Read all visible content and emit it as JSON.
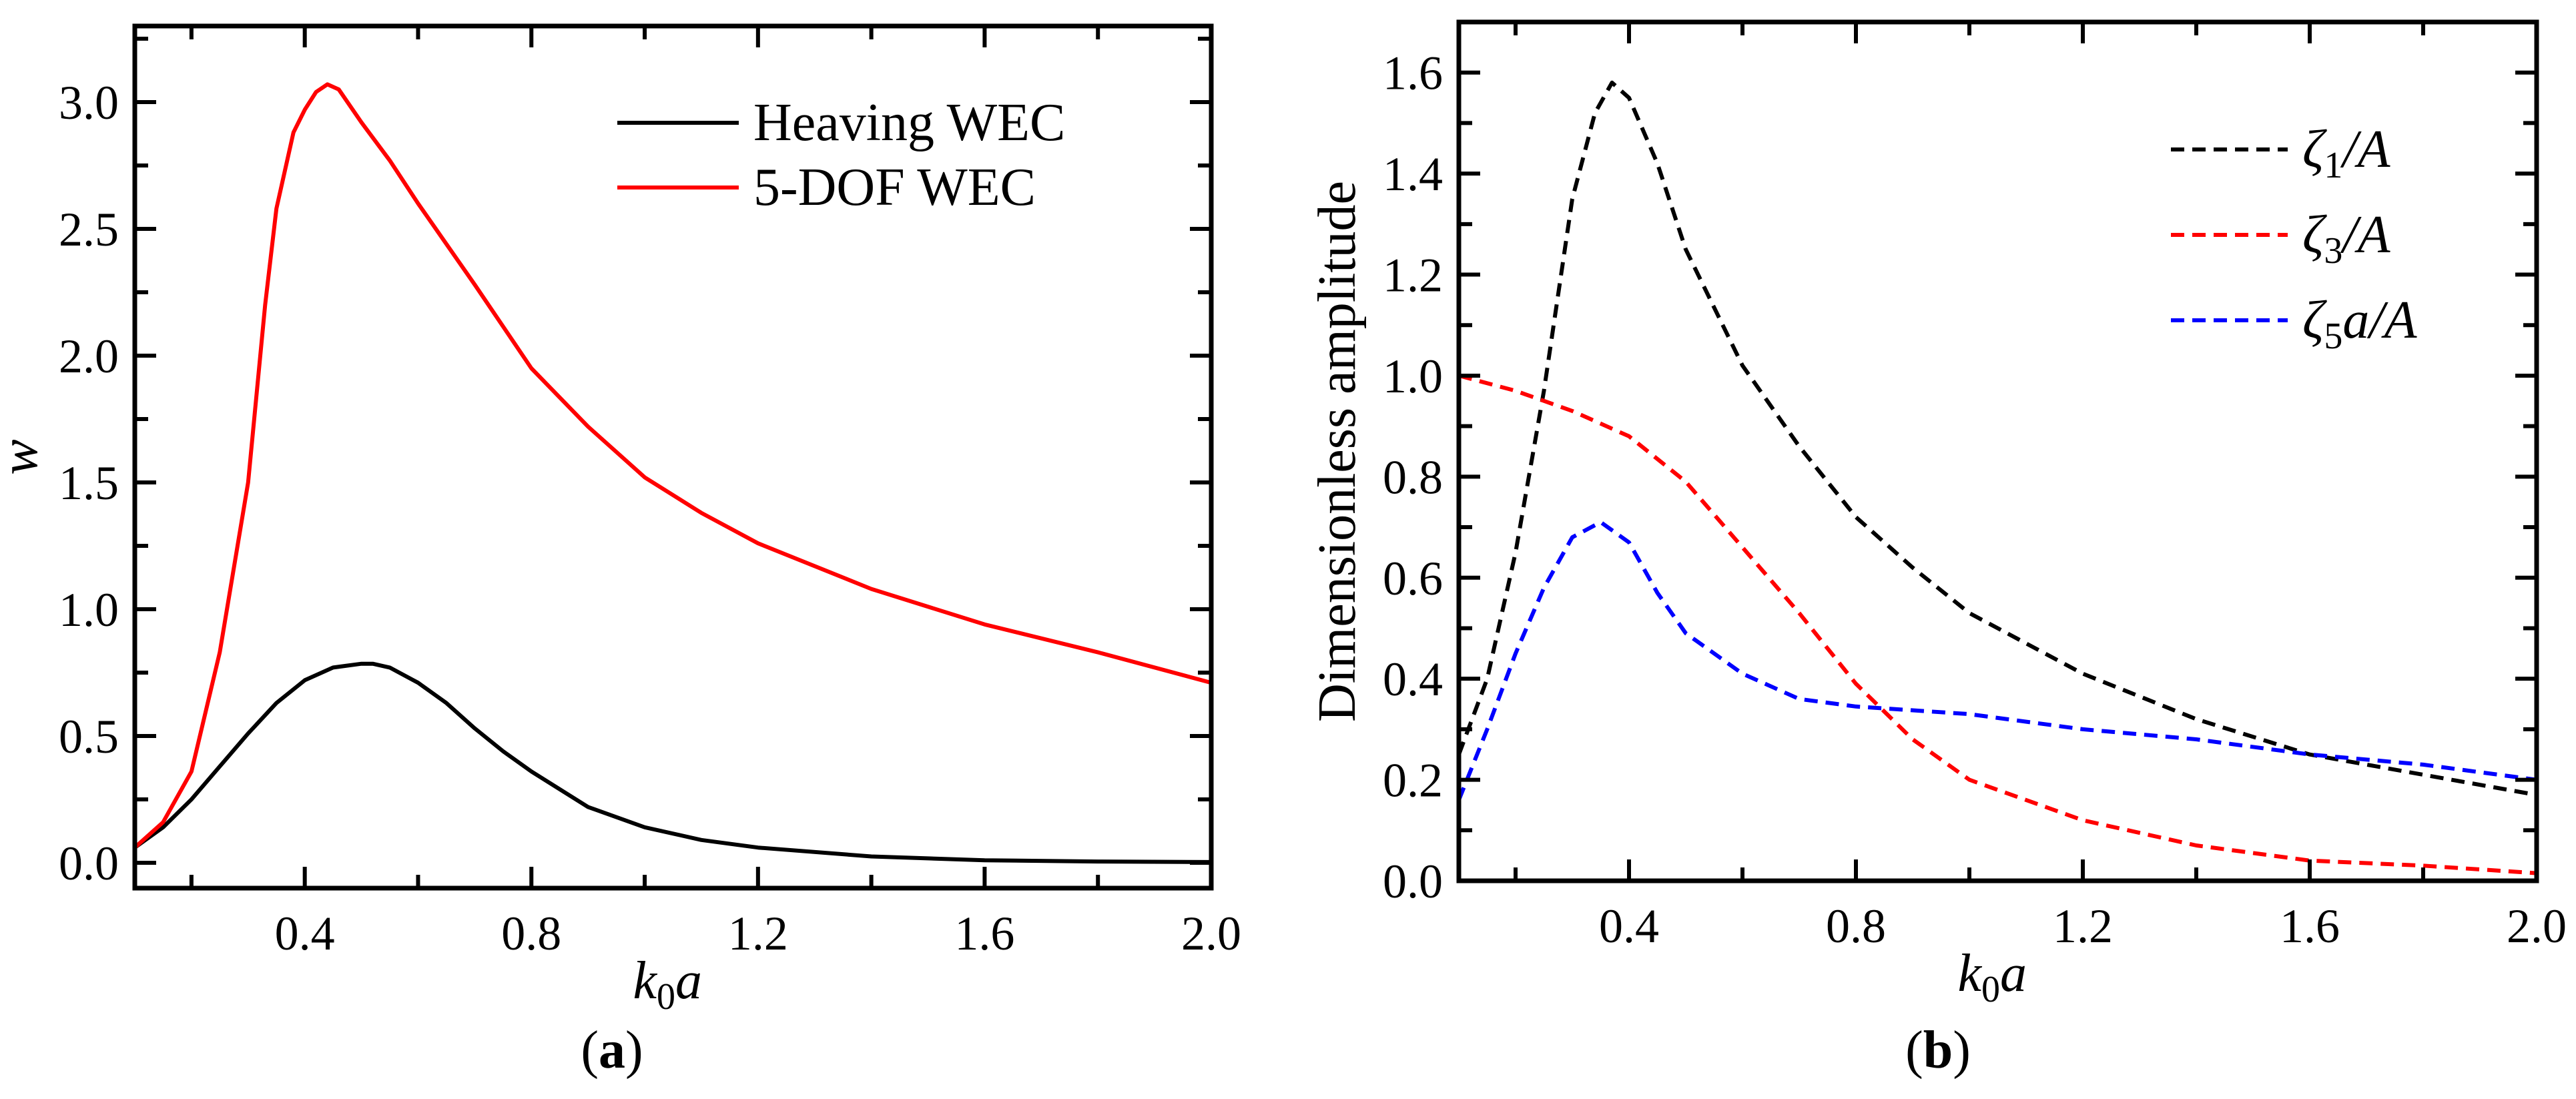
{
  "chart_data": [
    {
      "type": "line",
      "panel_label": {
        "open": "(",
        "letter": "a",
        "close": ")"
      },
      "xlabel": {
        "main": "k",
        "sub": "0",
        "rest": "a"
      },
      "ylabel": "w",
      "xlim": [
        0.1,
        2.0
      ],
      "ylim": [
        -0.1,
        3.3
      ],
      "xticks": [
        0.4,
        0.8,
        1.2,
        1.6,
        2.0
      ],
      "xtick_labels": [
        "0.4",
        "0.8",
        "1.2",
        "1.6",
        "2.0"
      ],
      "xminor_step": 0.2,
      "yticks": [
        0.0,
        0.5,
        1.0,
        1.5,
        2.0,
        2.5,
        3.0
      ],
      "ytick_labels": [
        "0.0",
        "0.5",
        "1.0",
        "1.5",
        "2.0",
        "2.5",
        "3.0"
      ],
      "yminor_step": 0.25,
      "legend_position": "top-right",
      "series": [
        {
          "name": "Heaving WEC",
          "legend": {
            "main": "Heaving WEC",
            "sub": "",
            "rest": ""
          },
          "color": "#000000",
          "dash": false,
          "x": [
            0.1,
            0.15,
            0.2,
            0.25,
            0.3,
            0.35,
            0.4,
            0.45,
            0.5,
            0.52,
            0.55,
            0.6,
            0.65,
            0.7,
            0.75,
            0.8,
            0.9,
            1.0,
            1.1,
            1.2,
            1.4,
            1.6,
            1.8,
            2.0
          ],
          "y": [
            0.06,
            0.14,
            0.25,
            0.38,
            0.51,
            0.63,
            0.72,
            0.77,
            0.785,
            0.785,
            0.77,
            0.71,
            0.63,
            0.53,
            0.44,
            0.36,
            0.22,
            0.14,
            0.09,
            0.06,
            0.025,
            0.01,
            0.005,
            0.003
          ]
        },
        {
          "name": "5-DOF WEC",
          "legend": {
            "main": "5-DOF WEC",
            "sub": "",
            "rest": ""
          },
          "color": "#ff0000",
          "dash": false,
          "x": [
            0.1,
            0.15,
            0.2,
            0.25,
            0.3,
            0.33,
            0.35,
            0.38,
            0.4,
            0.42,
            0.44,
            0.46,
            0.5,
            0.55,
            0.6,
            0.7,
            0.8,
            0.9,
            1.0,
            1.1,
            1.2,
            1.4,
            1.6,
            1.8,
            2.0
          ],
          "y": [
            0.06,
            0.16,
            0.36,
            0.83,
            1.5,
            2.2,
            2.58,
            2.88,
            2.97,
            3.04,
            3.07,
            3.05,
            2.92,
            2.77,
            2.6,
            2.28,
            1.95,
            1.72,
            1.52,
            1.38,
            1.26,
            1.08,
            0.94,
            0.83,
            0.71
          ]
        }
      ]
    },
    {
      "type": "line",
      "panel_label": {
        "open": "(",
        "letter": "b",
        "close": ")"
      },
      "xlabel": {
        "main": "k",
        "sub": "0",
        "rest": "a"
      },
      "ylabel": "Dimensionless amplitude",
      "xlim": [
        0.1,
        2.0
      ],
      "ylim": [
        0.0,
        1.7
      ],
      "xticks": [
        0.4,
        0.8,
        1.2,
        1.6,
        2.0
      ],
      "xtick_labels": [
        "0.4",
        "0.8",
        "1.2",
        "1.6",
        "2.0"
      ],
      "xminor_step": 0.2,
      "yticks": [
        0.0,
        0.2,
        0.4,
        0.6,
        0.8,
        1.0,
        1.2,
        1.4,
        1.6
      ],
      "ytick_labels": [
        "0.0",
        "0.2",
        "0.4",
        "0.6",
        "0.8",
        "1.0",
        "1.2",
        "1.4",
        "1.6"
      ],
      "yminor_step": 0.1,
      "legend_position": "top-right",
      "series": [
        {
          "name": "ζ1/A",
          "legend": {
            "main": "ζ",
            "sub": "1",
            "rest": "/A"
          },
          "color": "#000000",
          "dash": true,
          "x": [
            0.1,
            0.15,
            0.2,
            0.25,
            0.3,
            0.34,
            0.37,
            0.4,
            0.45,
            0.5,
            0.6,
            0.7,
            0.8,
            0.9,
            1.0,
            1.2,
            1.4,
            1.6,
            1.8,
            2.0
          ],
          "y": [
            0.25,
            0.4,
            0.65,
            0.97,
            1.35,
            1.52,
            1.58,
            1.55,
            1.42,
            1.25,
            1.02,
            0.86,
            0.72,
            0.62,
            0.53,
            0.41,
            0.32,
            0.25,
            0.21,
            0.17
          ]
        },
        {
          "name": "ζ3/A",
          "legend": {
            "main": "ζ",
            "sub": "3",
            "rest": "/A"
          },
          "color": "#ff0000",
          "dash": true,
          "x": [
            0.1,
            0.2,
            0.3,
            0.4,
            0.5,
            0.6,
            0.7,
            0.8,
            0.9,
            1.0,
            1.2,
            1.4,
            1.6,
            1.8,
            2.0
          ],
          "y": [
            1.0,
            0.97,
            0.93,
            0.88,
            0.79,
            0.66,
            0.53,
            0.39,
            0.28,
            0.2,
            0.12,
            0.07,
            0.04,
            0.03,
            0.015
          ]
        },
        {
          "name": "ζ5a/A",
          "legend": {
            "main": "ζ",
            "sub": "5",
            "rest": "a/A"
          },
          "color": "#0000ff",
          "dash": true,
          "x": [
            0.1,
            0.15,
            0.2,
            0.25,
            0.3,
            0.35,
            0.4,
            0.45,
            0.5,
            0.6,
            0.7,
            0.8,
            1.0,
            1.2,
            1.4,
            1.6,
            1.8,
            2.0
          ],
          "y": [
            0.16,
            0.3,
            0.45,
            0.58,
            0.68,
            0.71,
            0.67,
            0.57,
            0.49,
            0.41,
            0.36,
            0.345,
            0.33,
            0.3,
            0.28,
            0.25,
            0.23,
            0.2
          ]
        }
      ]
    }
  ]
}
